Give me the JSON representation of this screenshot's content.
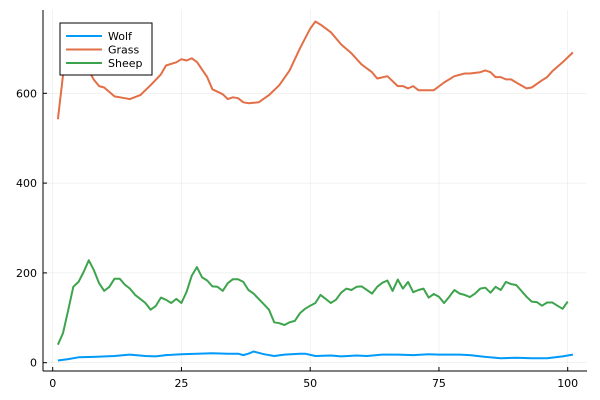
{
  "chart_data": {
    "type": "line",
    "title": "",
    "xlabel": "",
    "ylabel": "",
    "xlim": [
      -2,
      104
    ],
    "ylim": [
      -20,
      780
    ],
    "xticks": [
      0,
      25,
      50,
      75,
      100
    ],
    "yticks": [
      0,
      200,
      400,
      600
    ],
    "xtick_labels": [
      "0",
      "25",
      "50",
      "75",
      "100"
    ],
    "ytick_labels": [
      "0",
      "200",
      "400",
      "600"
    ],
    "grid": true,
    "legend_position": "top-left",
    "series": [
      {
        "name": "Wolf",
        "color": "#009af9",
        "points": [
          [
            1,
            5
          ],
          [
            3,
            8
          ],
          [
            5,
            12
          ],
          [
            8,
            13
          ],
          [
            12,
            15
          ],
          [
            15,
            18
          ],
          [
            18,
            15
          ],
          [
            20,
            14
          ],
          [
            22,
            17
          ],
          [
            25,
            19
          ],
          [
            28,
            20
          ],
          [
            31,
            21
          ],
          [
            34,
            20
          ],
          [
            36,
            20
          ],
          [
            37,
            17
          ],
          [
            38,
            20
          ],
          [
            39,
            25
          ],
          [
            41,
            19
          ],
          [
            43,
            15
          ],
          [
            45,
            18
          ],
          [
            48,
            20
          ],
          [
            49,
            20
          ],
          [
            51,
            15
          ],
          [
            54,
            16
          ],
          [
            56,
            14
          ],
          [
            59,
            16
          ],
          [
            61,
            15
          ],
          [
            64,
            18
          ],
          [
            67,
            18
          ],
          [
            70,
            17
          ],
          [
            73,
            19
          ],
          [
            75,
            18
          ],
          [
            79,
            18
          ],
          [
            81,
            17
          ],
          [
            84,
            13
          ],
          [
            87,
            10
          ],
          [
            90,
            11
          ],
          [
            93,
            10
          ],
          [
            96,
            10
          ],
          [
            99,
            14
          ],
          [
            101,
            18
          ]
        ]
      },
      {
        "name": "Grass",
        "color": "#e26f46",
        "points": [
          [
            1,
            542
          ],
          [
            2,
            640
          ],
          [
            3,
            690
          ],
          [
            4,
            700
          ],
          [
            5,
            680
          ],
          [
            6,
            660
          ],
          [
            7,
            650
          ],
          [
            8,
            630
          ],
          [
            9,
            616
          ],
          [
            10,
            613
          ],
          [
            12,
            593
          ],
          [
            14,
            589
          ],
          [
            15,
            587
          ],
          [
            17,
            596
          ],
          [
            19,
            618
          ],
          [
            21,
            642
          ],
          [
            22,
            662
          ],
          [
            24,
            669
          ],
          [
            25,
            676
          ],
          [
            26,
            673
          ],
          [
            27,
            678
          ],
          [
            28,
            670
          ],
          [
            30,
            636
          ],
          [
            31,
            609
          ],
          [
            33,
            598
          ],
          [
            34,
            587
          ],
          [
            35,
            591
          ],
          [
            36,
            589
          ],
          [
            37,
            580
          ],
          [
            38,
            578
          ],
          [
            40,
            580
          ],
          [
            42,
            596
          ],
          [
            44,
            618
          ],
          [
            46,
            651
          ],
          [
            48,
            700
          ],
          [
            50,
            744
          ],
          [
            51,
            760
          ],
          [
            52,
            753
          ],
          [
            54,
            736
          ],
          [
            56,
            709
          ],
          [
            58,
            689
          ],
          [
            60,
            664
          ],
          [
            62,
            647
          ],
          [
            63,
            633
          ],
          [
            65,
            638
          ],
          [
            67,
            616
          ],
          [
            68,
            616
          ],
          [
            69,
            611
          ],
          [
            70,
            616
          ],
          [
            71,
            607
          ],
          [
            74,
            607
          ],
          [
            76,
            624
          ],
          [
            78,
            638
          ],
          [
            80,
            644
          ],
          [
            81,
            644
          ],
          [
            83,
            647
          ],
          [
            84,
            651
          ],
          [
            85,
            647
          ],
          [
            86,
            636
          ],
          [
            87,
            636
          ],
          [
            88,
            631
          ],
          [
            89,
            631
          ],
          [
            90,
            624
          ],
          [
            92,
            611
          ],
          [
            93,
            613
          ],
          [
            95,
            629
          ],
          [
            96,
            636
          ],
          [
            97,
            649
          ],
          [
            99,
            669
          ],
          [
            101,
            691
          ]
        ]
      },
      {
        "name": "Sheep",
        "color": "#3da44d",
        "points": [
          [
            1,
            40
          ],
          [
            2,
            66
          ],
          [
            3,
            117
          ],
          [
            4,
            169
          ],
          [
            5,
            180
          ],
          [
            6,
            202
          ],
          [
            7,
            228
          ],
          [
            8,
            206
          ],
          [
            9,
            177
          ],
          [
            10,
            160
          ],
          [
            11,
            169
          ],
          [
            12,
            187
          ],
          [
            13,
            187
          ],
          [
            14,
            174
          ],
          [
            15,
            165
          ],
          [
            16,
            151
          ],
          [
            17,
            142
          ],
          [
            18,
            133
          ],
          [
            19,
            118
          ],
          [
            20,
            126
          ],
          [
            21,
            145
          ],
          [
            22,
            140
          ],
          [
            23,
            133
          ],
          [
            24,
            142
          ],
          [
            25,
            133
          ],
          [
            26,
            158
          ],
          [
            27,
            194
          ],
          [
            28,
            213
          ],
          [
            29,
            190
          ],
          [
            30,
            183
          ],
          [
            31,
            170
          ],
          [
            32,
            169
          ],
          [
            33,
            160
          ],
          [
            34,
            177
          ],
          [
            35,
            186
          ],
          [
            36,
            186
          ],
          [
            37,
            180
          ],
          [
            38,
            162
          ],
          [
            39,
            154
          ],
          [
            40,
            142
          ],
          [
            41,
            130
          ],
          [
            42,
            118
          ],
          [
            43,
            90
          ],
          [
            44,
            88
          ],
          [
            45,
            84
          ],
          [
            46,
            90
          ],
          [
            47,
            93
          ],
          [
            48,
            110
          ],
          [
            49,
            120
          ],
          [
            50,
            127
          ],
          [
            51,
            133
          ],
          [
            52,
            151
          ],
          [
            53,
            142
          ],
          [
            54,
            133
          ],
          [
            55,
            140
          ],
          [
            56,
            156
          ],
          [
            57,
            165
          ],
          [
            58,
            162
          ],
          [
            59,
            169
          ],
          [
            60,
            170
          ],
          [
            61,
            162
          ],
          [
            62,
            154
          ],
          [
            63,
            169
          ],
          [
            64,
            178
          ],
          [
            65,
            183
          ],
          [
            66,
            160
          ],
          [
            67,
            185
          ],
          [
            68,
            165
          ],
          [
            69,
            180
          ],
          [
            70,
            157
          ],
          [
            71,
            162
          ],
          [
            72,
            165
          ],
          [
            73,
            145
          ],
          [
            74,
            153
          ],
          [
            75,
            147
          ],
          [
            76,
            133
          ],
          [
            77,
            147
          ],
          [
            78,
            162
          ],
          [
            79,
            154
          ],
          [
            80,
            151
          ],
          [
            81,
            146
          ],
          [
            82,
            154
          ],
          [
            83,
            165
          ],
          [
            84,
            167
          ],
          [
            85,
            156
          ],
          [
            86,
            169
          ],
          [
            87,
            162
          ],
          [
            88,
            180
          ],
          [
            89,
            175
          ],
          [
            90,
            173
          ],
          [
            91,
            160
          ],
          [
            92,
            147
          ],
          [
            93,
            136
          ],
          [
            94,
            135
          ],
          [
            95,
            127
          ],
          [
            96,
            134
          ],
          [
            97,
            134
          ],
          [
            98,
            127
          ],
          [
            99,
            120
          ],
          [
            100,
            136
          ]
        ]
      }
    ]
  }
}
